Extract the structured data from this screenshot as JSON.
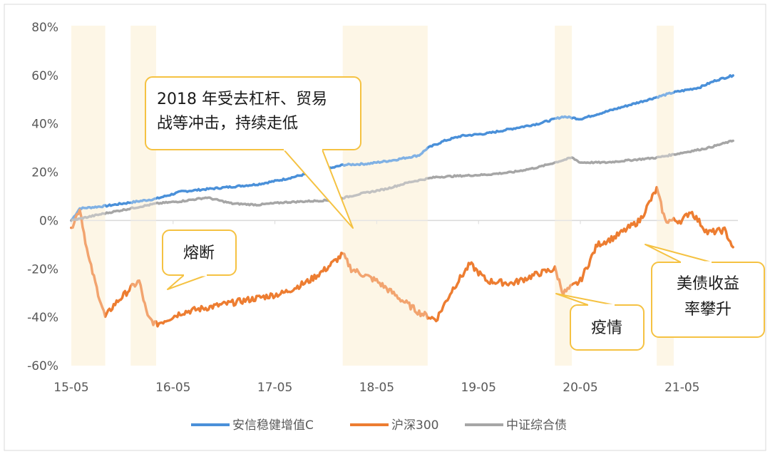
{
  "chart_data": {
    "type": "line",
    "title": "",
    "xlabel": "",
    "ylabel": "",
    "ylim": [
      -60,
      80
    ],
    "yticks": [
      "80%",
      "60%",
      "40%",
      "20%",
      "0%",
      "-20%",
      "-40%",
      "-60%"
    ],
    "xticks": [
      "15-05",
      "16-05",
      "17-05",
      "18-05",
      "19-05",
      "20-05",
      "21-05"
    ],
    "x_range": [
      "2015-05",
      "2021-11"
    ],
    "grid": false,
    "legend_position": "bottom",
    "series": [
      {
        "name": "安信稳健增值C",
        "color": "#4a90d9",
        "points": [
          [
            "2015-05",
            0
          ],
          [
            "2015-06",
            5
          ],
          [
            "2015-09",
            6
          ],
          [
            "2015-12",
            7.5
          ],
          [
            "2016-03",
            9
          ],
          [
            "2016-06",
            12
          ],
          [
            "2016-09",
            13
          ],
          [
            "2016-12",
            14
          ],
          [
            "2017-03",
            15
          ],
          [
            "2017-06",
            17
          ],
          [
            "2017-09",
            19.5
          ],
          [
            "2017-12",
            22
          ],
          [
            "2018-01",
            23
          ],
          [
            "2018-04",
            23.5
          ],
          [
            "2018-07",
            25
          ],
          [
            "2018-10",
            27
          ],
          [
            "2018-11",
            30
          ],
          [
            "2019-01",
            33
          ],
          [
            "2019-03",
            35
          ],
          [
            "2019-06",
            36
          ],
          [
            "2019-09",
            38
          ],
          [
            "2019-12",
            40
          ],
          [
            "2020-02",
            42
          ],
          [
            "2020-03",
            43
          ],
          [
            "2020-05",
            42
          ],
          [
            "2020-08",
            45
          ],
          [
            "2020-11",
            48
          ],
          [
            "2021-02",
            51
          ],
          [
            "2021-04",
            53
          ],
          [
            "2021-07",
            55
          ],
          [
            "2021-09",
            58
          ],
          [
            "2021-11",
            60
          ]
        ]
      },
      {
        "name": "沪深300",
        "color": "#ed7d31",
        "points": [
          [
            "2015-05",
            -3
          ],
          [
            "2015-06",
            5
          ],
          [
            "2015-07",
            -15
          ],
          [
            "2015-08",
            -28
          ],
          [
            "2015-09",
            -40
          ],
          [
            "2015-10",
            -35
          ],
          [
            "2015-12",
            -28
          ],
          [
            "2016-01",
            -25
          ],
          [
            "2016-02",
            -40
          ],
          [
            "2016-03",
            -43
          ],
          [
            "2016-06",
            -38
          ],
          [
            "2016-09",
            -36
          ],
          [
            "2016-12",
            -34
          ],
          [
            "2017-03",
            -32
          ],
          [
            "2017-06",
            -30
          ],
          [
            "2017-09",
            -25
          ],
          [
            "2017-11",
            -20
          ],
          [
            "2018-01",
            -14
          ],
          [
            "2018-02",
            -20
          ],
          [
            "2018-05",
            -25
          ],
          [
            "2018-08",
            -33
          ],
          [
            "2018-10",
            -38
          ],
          [
            "2018-12",
            -41
          ],
          [
            "2019-02",
            -28
          ],
          [
            "2019-04",
            -18
          ],
          [
            "2019-06",
            -25
          ],
          [
            "2019-09",
            -26
          ],
          [
            "2019-12",
            -22
          ],
          [
            "2020-02",
            -20
          ],
          [
            "2020-03",
            -30
          ],
          [
            "2020-05",
            -25
          ],
          [
            "2020-07",
            -10
          ],
          [
            "2020-09",
            -7
          ],
          [
            "2020-12",
            0
          ],
          [
            "2021-02",
            13
          ],
          [
            "2021-03",
            0
          ],
          [
            "2021-05",
            0
          ],
          [
            "2021-06",
            4
          ],
          [
            "2021-08",
            -5
          ],
          [
            "2021-10",
            -4
          ],
          [
            "2021-11",
            -11
          ]
        ]
      },
      {
        "name": "中证综合债",
        "color": "#a6a6a6",
        "points": [
          [
            "2015-05",
            0
          ],
          [
            "2015-09",
            3
          ],
          [
            "2015-12",
            5
          ],
          [
            "2016-03",
            7
          ],
          [
            "2016-06",
            8
          ],
          [
            "2016-09",
            9.5
          ],
          [
            "2016-12",
            7
          ],
          [
            "2017-03",
            6.5
          ],
          [
            "2017-06",
            7.5
          ],
          [
            "2017-09",
            8
          ],
          [
            "2017-12",
            8.5
          ],
          [
            "2018-03",
            11
          ],
          [
            "2018-06",
            13
          ],
          [
            "2018-09",
            16
          ],
          [
            "2018-12",
            18
          ],
          [
            "2019-03",
            18.5
          ],
          [
            "2019-06",
            19
          ],
          [
            "2019-09",
            20
          ],
          [
            "2019-12",
            22
          ],
          [
            "2020-04",
            26
          ],
          [
            "2020-05",
            24
          ],
          [
            "2020-08",
            24
          ],
          [
            "2020-11",
            25
          ],
          [
            "2021-02",
            26
          ],
          [
            "2021-05",
            28
          ],
          [
            "2021-08",
            30
          ],
          [
            "2021-11",
            33
          ]
        ]
      }
    ],
    "highlight_periods": [
      [
        "2015-05",
        "2015-09"
      ],
      [
        "2015-12",
        "2016-03"
      ],
      [
        "2018-01",
        "2018-11"
      ],
      [
        "2020-02",
        "2020-04"
      ],
      [
        "2021-02",
        "2021-04"
      ]
    ],
    "annotations": [
      {
        "id": "deleveraging",
        "lines": [
          "2018 年受去杠杆、贸易",
          "战等冲击，持续走低"
        ]
      },
      {
        "id": "circuit-breaker",
        "lines": [
          "熔断"
        ]
      },
      {
        "id": "epidemic",
        "lines": [
          "疫情"
        ]
      },
      {
        "id": "us-treasury",
        "lines": [
          "美债收益",
          "率攀升"
        ]
      }
    ]
  }
}
